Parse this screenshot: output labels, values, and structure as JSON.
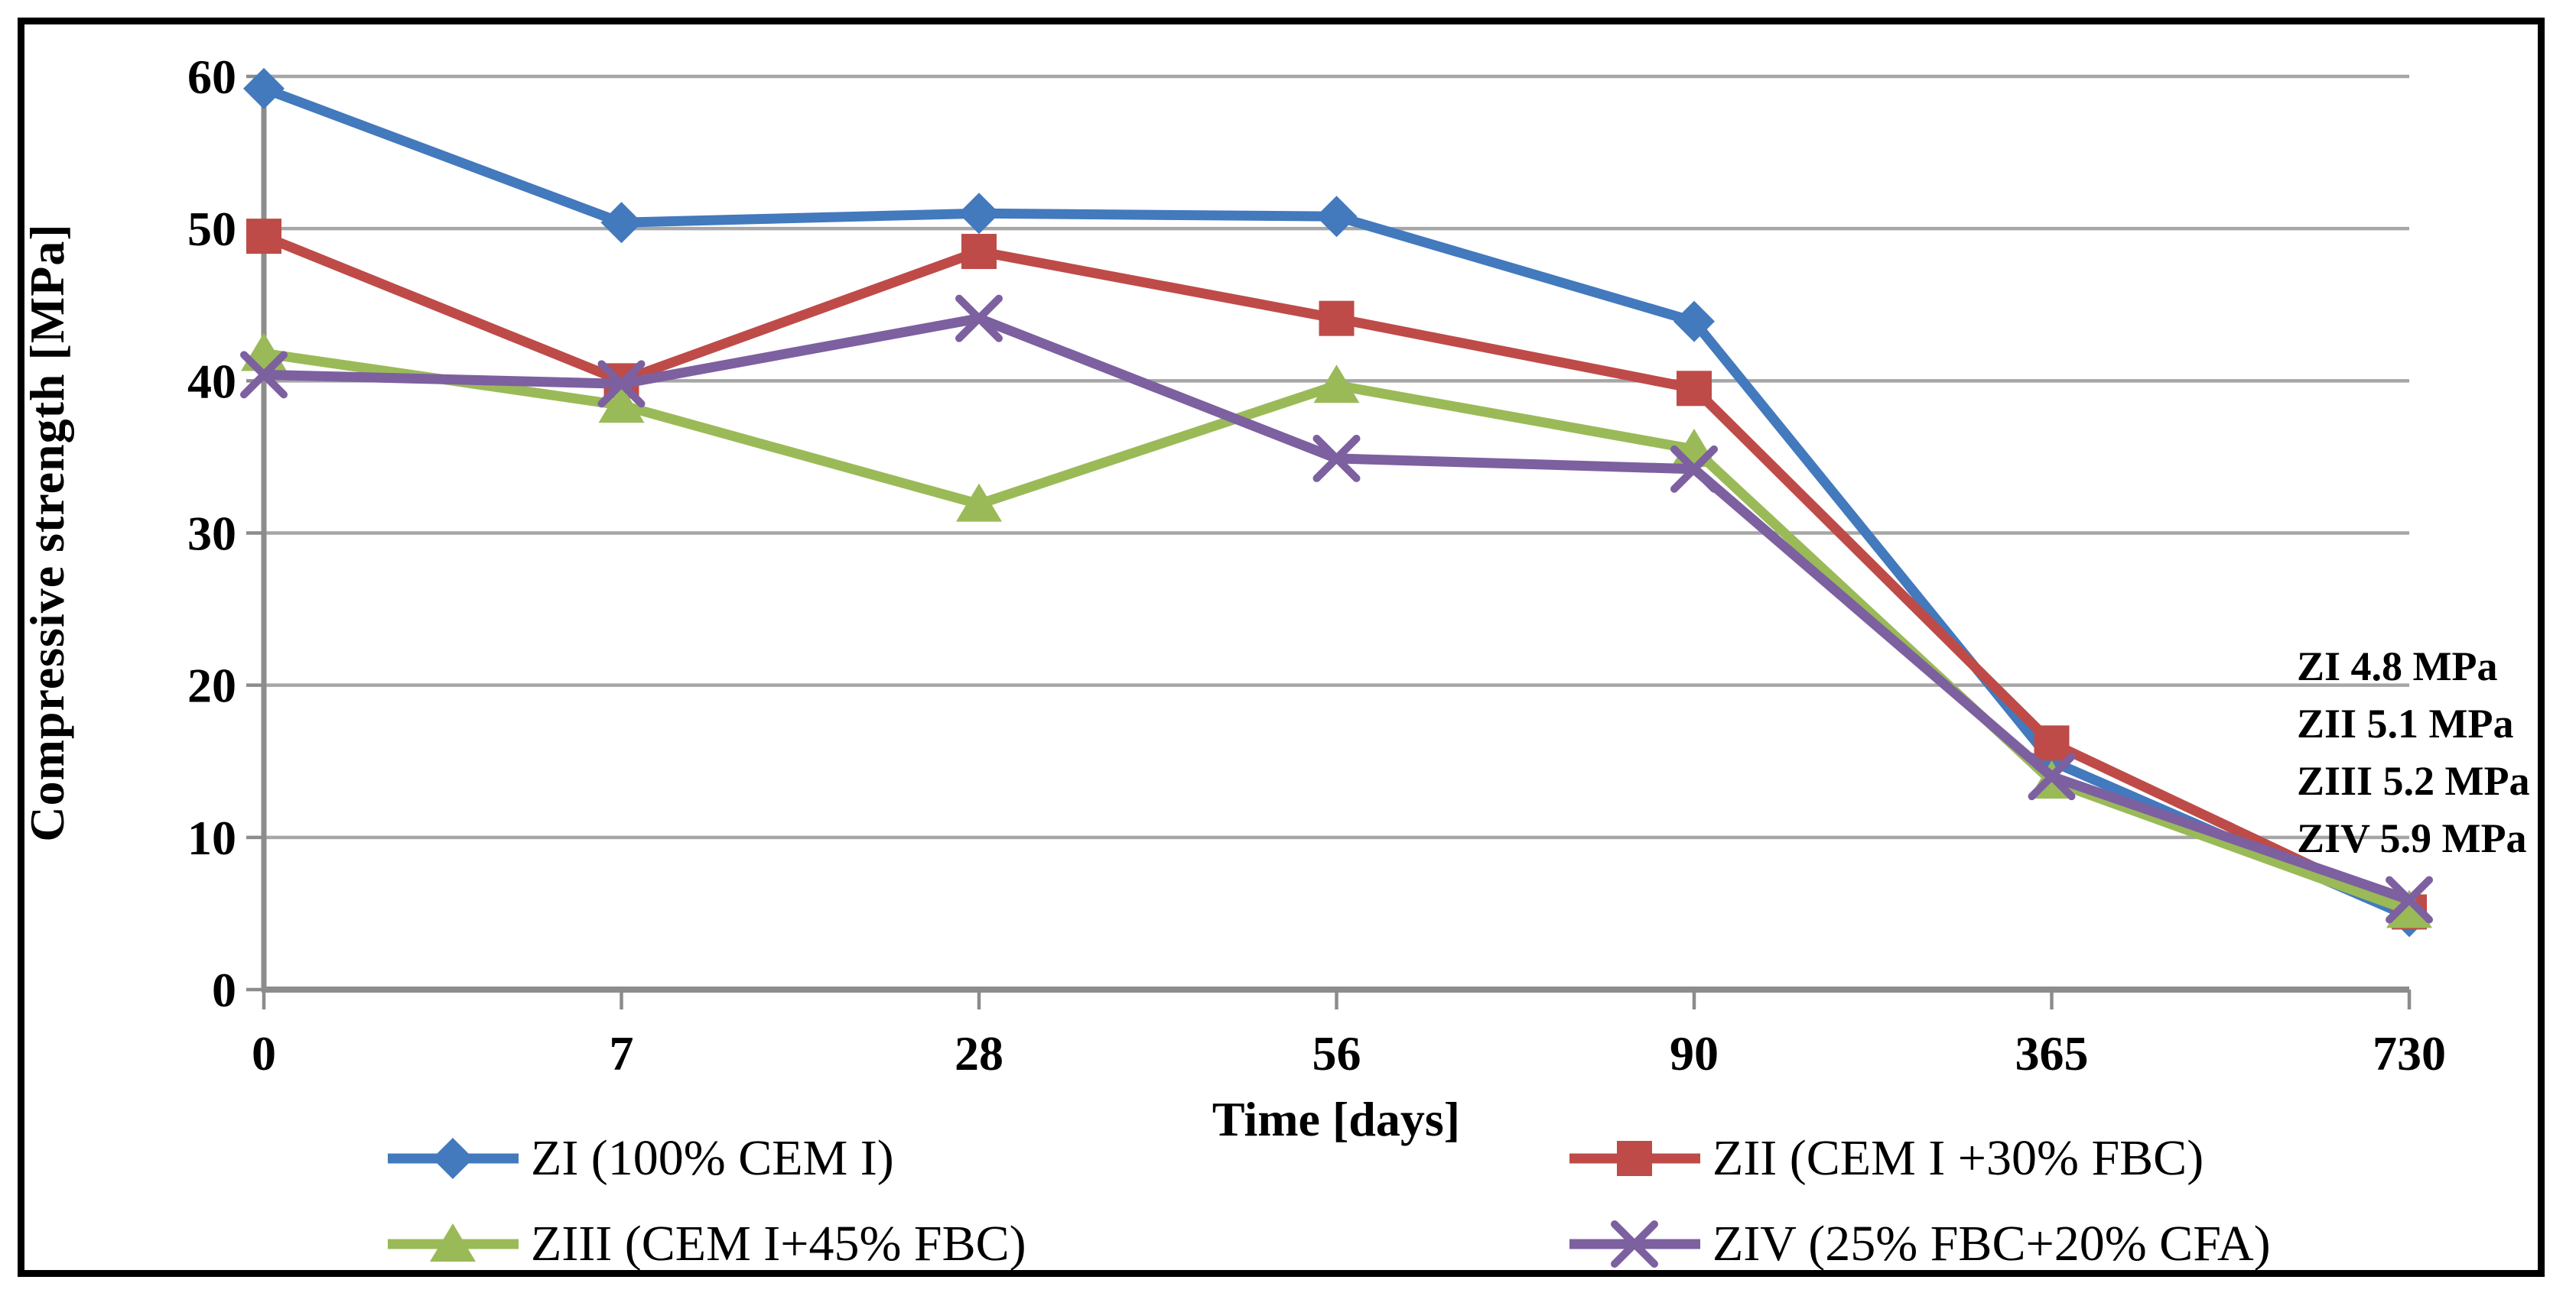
{
  "chart_data": {
    "type": "line",
    "title": "",
    "xlabel": "Time [days]",
    "ylabel": "Compressive strength [MPa]",
    "categories": [
      "0",
      "7",
      "28",
      "56",
      "90",
      "365",
      "730"
    ],
    "y_ticks": [
      0,
      10,
      20,
      30,
      40,
      50,
      60
    ],
    "ylim": [
      0,
      60
    ],
    "grid": "horizontal",
    "legend_position": "bottom-two-columns",
    "series": [
      {
        "name": "ZI",
        "label": "ZI (100% CEM I)",
        "marker": "diamond",
        "color": "#4379BD",
        "values": [
          59.2,
          50.4,
          51.0,
          50.8,
          43.9,
          15.0,
          4.8
        ]
      },
      {
        "name": "ZII",
        "label": "ZII (CEM I +30% FBC)",
        "marker": "square",
        "color": "#BE4B48",
        "values": [
          49.5,
          40.0,
          48.5,
          44.1,
          39.5,
          16.2,
          5.1
        ]
      },
      {
        "name": "ZIII",
        "label": "ZIII (CEM I+45% FBC)",
        "marker": "triangle",
        "color": "#9ABA58",
        "values": [
          41.8,
          38.4,
          31.9,
          39.7,
          35.5,
          13.7,
          5.2
        ]
      },
      {
        "name": "ZIV",
        "label": "ZIV (25% FBC+20% CFA)",
        "marker": "x",
        "color": "#7D60A0",
        "values": [
          40.4,
          39.8,
          44.1,
          34.9,
          34.2,
          14.0,
          5.9
        ]
      }
    ],
    "annotations": [
      "ZI 4.8 MPa",
      "ZII 5.1 MPa",
      "ZIII 5.2 MPa",
      "ZIV 5.9 MPa"
    ],
    "colors": {
      "gridline": "#A6A6A6",
      "axis": "#8C8C8C",
      "text": "#000000",
      "frame_border": "#000000"
    }
  }
}
